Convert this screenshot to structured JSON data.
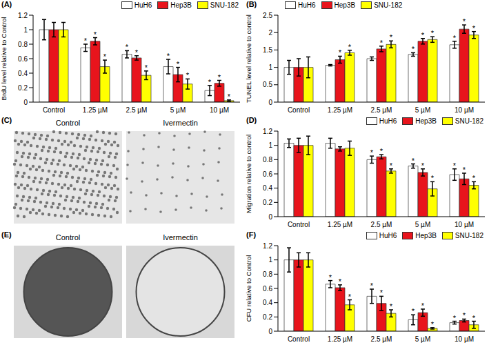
{
  "chart_data": [
    {
      "type": "bar",
      "title": "(A)",
      "y_label": "BrdU level relative to Control",
      "categories": [
        "Control",
        "1.25 µM",
        "2.5 µM",
        "5 µM",
        "10 µM"
      ],
      "ylim": [
        0,
        1.2
      ],
      "yticks": [
        0,
        0.2,
        0.4,
        0.6,
        0.8,
        1,
        1.2
      ],
      "legend": "top-right",
      "series": [
        {
          "name": "HuH6",
          "color": "#ffffff",
          "values": [
            1.0,
            0.75,
            0.66,
            0.49,
            0.16
          ],
          "error": [
            0.14,
            0.05,
            0.05,
            0.1,
            0.07
          ],
          "annotations": [
            null,
            "*",
            "*",
            "*",
            "*"
          ]
        },
        {
          "name": "Hep3B",
          "color": "#e8141c",
          "values": [
            1.0,
            0.84,
            0.61,
            0.38,
            0.26
          ],
          "error": [
            0.1,
            0.05,
            0.03,
            0.1,
            0.04
          ],
          "annotations": [
            null,
            "*",
            "*",
            "*",
            "*"
          ]
        },
        {
          "name": "SNU-182",
          "color": "#ffff00",
          "values": [
            1.0,
            0.49,
            0.37,
            0.25,
            0.02
          ],
          "error": [
            0.1,
            0.09,
            0.06,
            0.07,
            0.01
          ],
          "annotations": [
            null,
            "*",
            "*",
            "*",
            "*"
          ]
        }
      ]
    },
    {
      "type": "bar",
      "title": "(B)",
      "y_label": "TUNEL level relative to control",
      "categories": [
        "Control",
        "1.25 µM",
        "2.5 µM",
        "5 µM",
        "10 µM"
      ],
      "ylim": [
        0,
        2.5
      ],
      "yticks": [
        0,
        0.5,
        1,
        1.5,
        2,
        2.5
      ],
      "legend": "top-left",
      "series": [
        {
          "name": "HuH6",
          "color": "#ffffff",
          "values": [
            1.0,
            1.06,
            1.25,
            1.37,
            1.65
          ],
          "error": [
            0.2,
            0.02,
            0.05,
            0.05,
            0.1
          ],
          "annotations": [
            null,
            null,
            null,
            "*",
            "*"
          ]
        },
        {
          "name": "Hep3B",
          "color": "#e8141c",
          "values": [
            1.0,
            1.22,
            1.53,
            1.75,
            2.1
          ],
          "error": [
            0.25,
            0.1,
            0.08,
            0.08,
            0.12
          ],
          "annotations": [
            null,
            "*",
            "*",
            "*",
            "*"
          ]
        },
        {
          "name": "SNU-182",
          "color": "#ffff00",
          "values": [
            1.0,
            1.42,
            1.66,
            1.8,
            1.93
          ],
          "error": [
            0.3,
            0.07,
            0.1,
            0.08,
            0.1
          ],
          "annotations": [
            null,
            "*",
            "*",
            "*",
            "*"
          ]
        }
      ]
    },
    {
      "type": "bar",
      "title": "(D)",
      "y_label": "Migration relative to control",
      "categories": [
        "Control",
        "1.25 µM",
        "2.5 µM",
        "5 µM",
        "10 µM"
      ],
      "ylim": [
        0,
        1.2
      ],
      "yticks": [
        0,
        0.2,
        0.4,
        0.6,
        0.8,
        1,
        1.2
      ],
      "legend": "top-right",
      "series": [
        {
          "name": "HuH6",
          "color": "#ffffff",
          "values": [
            1.03,
            1.03,
            0.8,
            0.71,
            0.59
          ],
          "error": [
            0.06,
            0.07,
            0.05,
            0.03,
            0.08
          ],
          "annotations": [
            null,
            null,
            "*",
            "*",
            "*"
          ]
        },
        {
          "name": "Hep3B",
          "color": "#e8141c",
          "values": [
            1.0,
            0.95,
            0.84,
            0.62,
            0.53
          ],
          "error": [
            0.1,
            0.03,
            0.03,
            0.05,
            0.08
          ],
          "annotations": [
            null,
            null,
            "*",
            "*",
            "*"
          ]
        },
        {
          "name": "SNU-182",
          "color": "#ffff00",
          "values": [
            1.0,
            0.96,
            0.64,
            0.39,
            0.44
          ],
          "error": [
            0.13,
            0.1,
            0.03,
            0.1,
            0.05
          ],
          "annotations": [
            null,
            null,
            "*",
            "*",
            "*"
          ]
        }
      ]
    },
    {
      "type": "bar",
      "title": "(F)",
      "y_label": "CFU relative to Control",
      "categories": [
        "Control",
        "1.25 µM",
        "2.5 µM",
        "5 µM",
        "10 µM"
      ],
      "ylim": [
        0,
        1.2
      ],
      "yticks": [
        0,
        0.2,
        0.4,
        0.6,
        0.8,
        1,
        1.2
      ],
      "legend": "top-right",
      "series": [
        {
          "name": "HuH6",
          "color": "#ffffff",
          "values": [
            1.0,
            0.66,
            0.49,
            0.16,
            0.12
          ],
          "error": [
            0.17,
            0.05,
            0.1,
            0.07,
            0.02
          ],
          "annotations": [
            null,
            "*",
            "*",
            "*",
            "*"
          ]
        },
        {
          "name": "Hep3B",
          "color": "#e8141c",
          "values": [
            1.0,
            0.61,
            0.39,
            0.26,
            0.15
          ],
          "error": [
            0.1,
            0.04,
            0.1,
            0.05,
            0.02
          ],
          "annotations": [
            null,
            "*",
            "*",
            "*",
            "*"
          ]
        },
        {
          "name": "SNU-182",
          "color": "#ffff00",
          "values": [
            1.0,
            0.37,
            0.25,
            0.04,
            0.09
          ],
          "error": [
            0.1,
            0.07,
            0.05,
            0.01,
            0.05
          ],
          "annotations": [
            null,
            "*",
            "*",
            "*",
            "*"
          ]
        }
      ]
    }
  ],
  "images": [
    {
      "type": "image",
      "title": "(C)",
      "labels": [
        "Control",
        "Ivermectin"
      ],
      "kind": "cells"
    },
    {
      "type": "image",
      "title": "(E)",
      "labels": [
        "Control",
        "Ivermectin"
      ],
      "kind": "dish"
    }
  ]
}
